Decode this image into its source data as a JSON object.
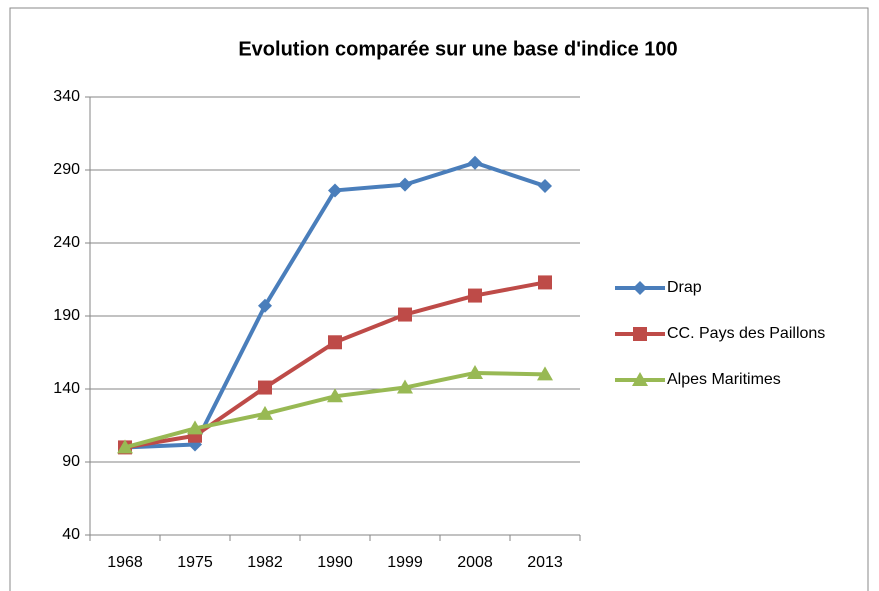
{
  "chart_data": {
    "type": "line",
    "title": "Evolution comparée sur une base d'indice 100",
    "categories": [
      "1968",
      "1975",
      "1982",
      "1990",
      "1999",
      "2008",
      "2013"
    ],
    "series": [
      {
        "name": "Drap",
        "color": "#4a7ebb",
        "marker": "diamond",
        "values": [
          100,
          102,
          197,
          276,
          280,
          295,
          279
        ]
      },
      {
        "name": "CC. Pays des Paillons",
        "color": "#be4b48",
        "marker": "square",
        "values": [
          100,
          108,
          141,
          172,
          191,
          204,
          213
        ]
      },
      {
        "name": "Alpes Maritimes",
        "color": "#98b954",
        "marker": "triangle",
        "values": [
          100,
          113,
          123,
          135,
          141,
          151,
          150
        ]
      }
    ],
    "ylim": [
      40,
      340
    ],
    "yticks": [
      40,
      90,
      140,
      190,
      240,
      290,
      340
    ],
    "grid": true,
    "legend": "right"
  }
}
